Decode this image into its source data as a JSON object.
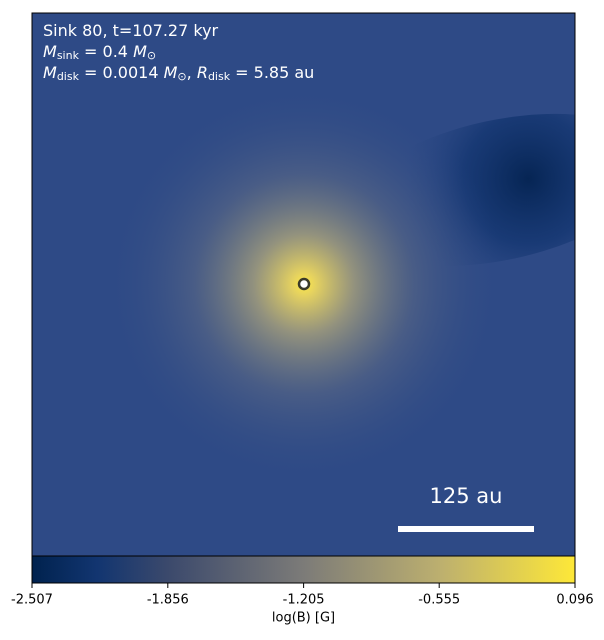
{
  "chart_data": {
    "type": "image",
    "annotation_lines": [
      [
        {
          "text": "Sink 80, t=107.27 kyr"
        }
      ],
      [
        {
          "text": "M"
        },
        {
          "sub": "sink"
        },
        {
          "text": " = 0.4 "
        },
        {
          "text": "M"
        },
        {
          "sub": "⊙"
        }
      ],
      [
        {
          "text": "M"
        },
        {
          "sub": "disk"
        },
        {
          "text": " = 0.0014 "
        },
        {
          "text": "M"
        },
        {
          "sub": "⊙"
        },
        {
          "text": ", "
        },
        {
          "text": "R"
        },
        {
          "sub": "disk"
        },
        {
          "text": " = 5.85 au"
        }
      ]
    ],
    "scale_bar_label": "125 au",
    "colorbar": {
      "label": "log(B) [G]",
      "lim": [
        -2.507,
        0.096
      ],
      "ticks": [
        -2.507,
        -1.856,
        -1.205,
        -0.555,
        0.096
      ]
    }
  }
}
